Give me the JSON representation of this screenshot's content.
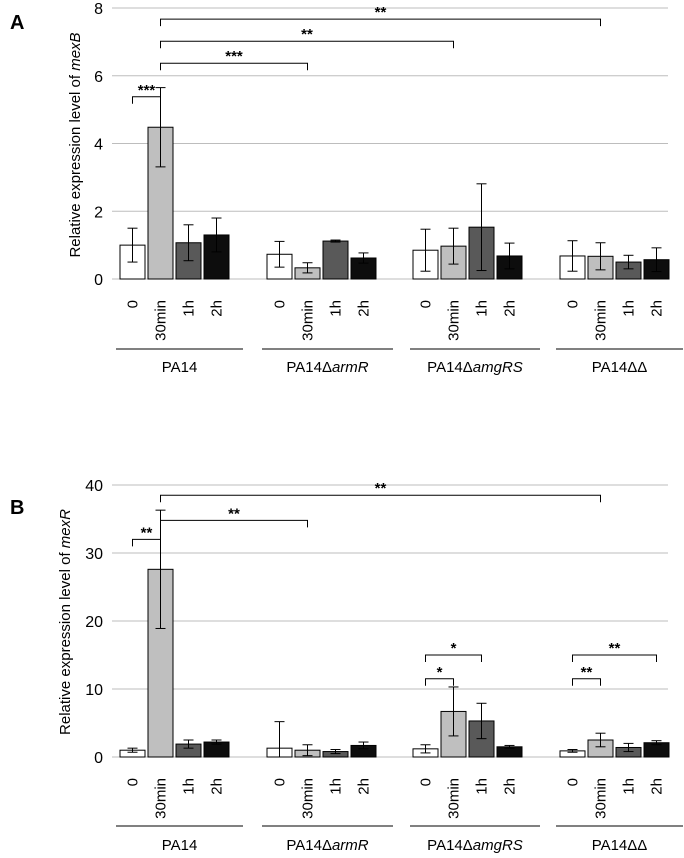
{
  "chart_data": [
    {
      "type": "bar",
      "panel_label": "A",
      "ylabel": "Relative expression level of mexB",
      "ylabel_prefix": "Relative expression level of ",
      "ylabel_gene": "mexB",
      "ylim": [
        0,
        8
      ],
      "yticks": [
        "0",
        "2",
        "4",
        "6",
        "8"
      ],
      "categories": [
        "0",
        "30min",
        "1h",
        "2h"
      ],
      "groups": [
        {
          "label_prefix": "PA14",
          "label_italic": ""
        },
        {
          "label_prefix": "PA14Δ",
          "label_italic": "armR"
        },
        {
          "label_prefix": "PA14Δ",
          "label_italic": "amgRS"
        },
        {
          "label_prefix": "PA14ΔΔ",
          "label_italic": ""
        }
      ],
      "series_colors": [
        "#ffffff",
        "#bfbfbf",
        "#595959",
        "#0d0d0d"
      ],
      "values": [
        [
          1.0,
          4.48,
          1.07,
          1.3
        ],
        [
          0.73,
          0.33,
          1.12,
          0.62
        ],
        [
          0.85,
          0.97,
          1.53,
          0.68
        ],
        [
          0.68,
          0.67,
          0.5,
          0.57
        ]
      ],
      "errors": [
        [
          0.5,
          1.17,
          0.53,
          0.5
        ],
        [
          0.38,
          0.15,
          0.03,
          0.15
        ],
        [
          0.62,
          0.53,
          1.28,
          0.38
        ],
        [
          0.45,
          0.4,
          0.2,
          0.35
        ]
      ],
      "significance": [
        {
          "from": [
            0,
            0
          ],
          "to": [
            0,
            1
          ],
          "label": "***",
          "level": 5.38
        },
        {
          "from": [
            0,
            1
          ],
          "to": [
            1,
            1
          ],
          "label": "***",
          "level": 6.37
        },
        {
          "from": [
            0,
            1
          ],
          "to": [
            2,
            1
          ],
          "label": "**",
          "level": 7.02
        },
        {
          "from": [
            0,
            1
          ],
          "to": [
            3,
            1
          ],
          "label": "**",
          "level": 7.67
        }
      ]
    },
    {
      "type": "bar",
      "panel_label": "B",
      "ylabel": "Relative expression level of mexR",
      "ylabel_prefix": "Relative expression level of ",
      "ylabel_gene": "mexR",
      "ylim": [
        0,
        40
      ],
      "yticks": [
        "0",
        "10",
        "20",
        "30",
        "40"
      ],
      "categories": [
        "0",
        "30min",
        "1h",
        "2h"
      ],
      "groups": [
        {
          "label_prefix": "PA14",
          "label_italic": ""
        },
        {
          "label_prefix": "PA14Δ",
          "label_italic": "armR"
        },
        {
          "label_prefix": "PA14Δ",
          "label_italic": "amgRS"
        },
        {
          "label_prefix": "PA14ΔΔ",
          "label_italic": ""
        }
      ],
      "series_colors": [
        "#ffffff",
        "#bfbfbf",
        "#595959",
        "#0d0d0d"
      ],
      "values": [
        [
          1.0,
          27.6,
          1.9,
          2.2
        ],
        [
          1.3,
          1.0,
          0.8,
          1.7
        ],
        [
          1.2,
          6.7,
          5.3,
          1.5
        ],
        [
          0.9,
          2.5,
          1.4,
          2.1
        ]
      ],
      "errors": [
        [
          0.3,
          8.7,
          0.6,
          0.3
        ],
        [
          3.9,
          0.8,
          0.3,
          0.5
        ],
        [
          0.6,
          3.6,
          2.6,
          0.2
        ],
        [
          0.2,
          1.0,
          0.6,
          0.3
        ]
      ],
      "significance": [
        {
          "from": [
            0,
            0
          ],
          "to": [
            0,
            1
          ],
          "label": "**",
          "level": 32.0
        },
        {
          "from": [
            0,
            1
          ],
          "to": [
            1,
            1
          ],
          "label": "**",
          "level": 34.8
        },
        {
          "from": [
            0,
            1
          ],
          "to": [
            3,
            1
          ],
          "label": "**",
          "level": 38.5
        },
        {
          "from": [
            2,
            0
          ],
          "to": [
            2,
            1
          ],
          "label": "*",
          "level": 11.5
        },
        {
          "from": [
            2,
            0
          ],
          "to": [
            2,
            2
          ],
          "label": "*",
          "level": 15.0
        },
        {
          "from": [
            3,
            0
          ],
          "to": [
            3,
            1
          ],
          "label": "**",
          "level": 11.5
        },
        {
          "from": [
            3,
            0
          ],
          "to": [
            3,
            3
          ],
          "label": "**",
          "level": 15.0
        }
      ]
    }
  ]
}
